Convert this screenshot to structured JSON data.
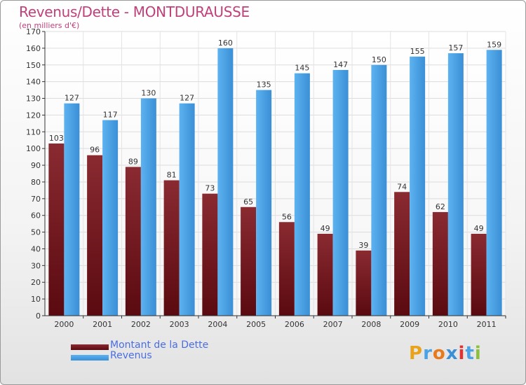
{
  "title": "Revenus/Dette - MONTDURAUSSE",
  "subtitle": "(en milliers d'€)",
  "chart_data": {
    "type": "bar",
    "categories": [
      "2000",
      "2001",
      "2002",
      "2003",
      "2004",
      "2005",
      "2006",
      "2007",
      "2008",
      "2009",
      "2010",
      "2011"
    ],
    "series": [
      {
        "name": "Montant de la Dette",
        "color": "#7a1e26",
        "values": [
          103,
          96,
          89,
          81,
          73,
          65,
          56,
          49,
          39,
          74,
          62,
          49
        ]
      },
      {
        "name": "Revenus",
        "color": "#4aa3e6",
        "values": [
          127,
          117,
          130,
          127,
          160,
          135,
          145,
          147,
          150,
          155,
          157,
          159
        ]
      }
    ],
    "ylim": [
      0,
      170
    ],
    "yticks": [
      0,
      10,
      20,
      30,
      40,
      50,
      60,
      70,
      80,
      90,
      100,
      110,
      120,
      130,
      140,
      150,
      160,
      170
    ],
    "grid": true,
    "legend_position": "bottom-left"
  },
  "legend": {
    "debt_label": "Montant de la Dette",
    "revenue_label": "Revenus"
  },
  "logo": {
    "letters": [
      "P",
      "r",
      "o",
      "x",
      "i",
      "t",
      "i"
    ],
    "colors": [
      "#e8a21c",
      "#4aa3e6",
      "#e87a1c",
      "#3a8fd6",
      "#d33",
      "#4aa3e6",
      "#8ac03a"
    ]
  }
}
